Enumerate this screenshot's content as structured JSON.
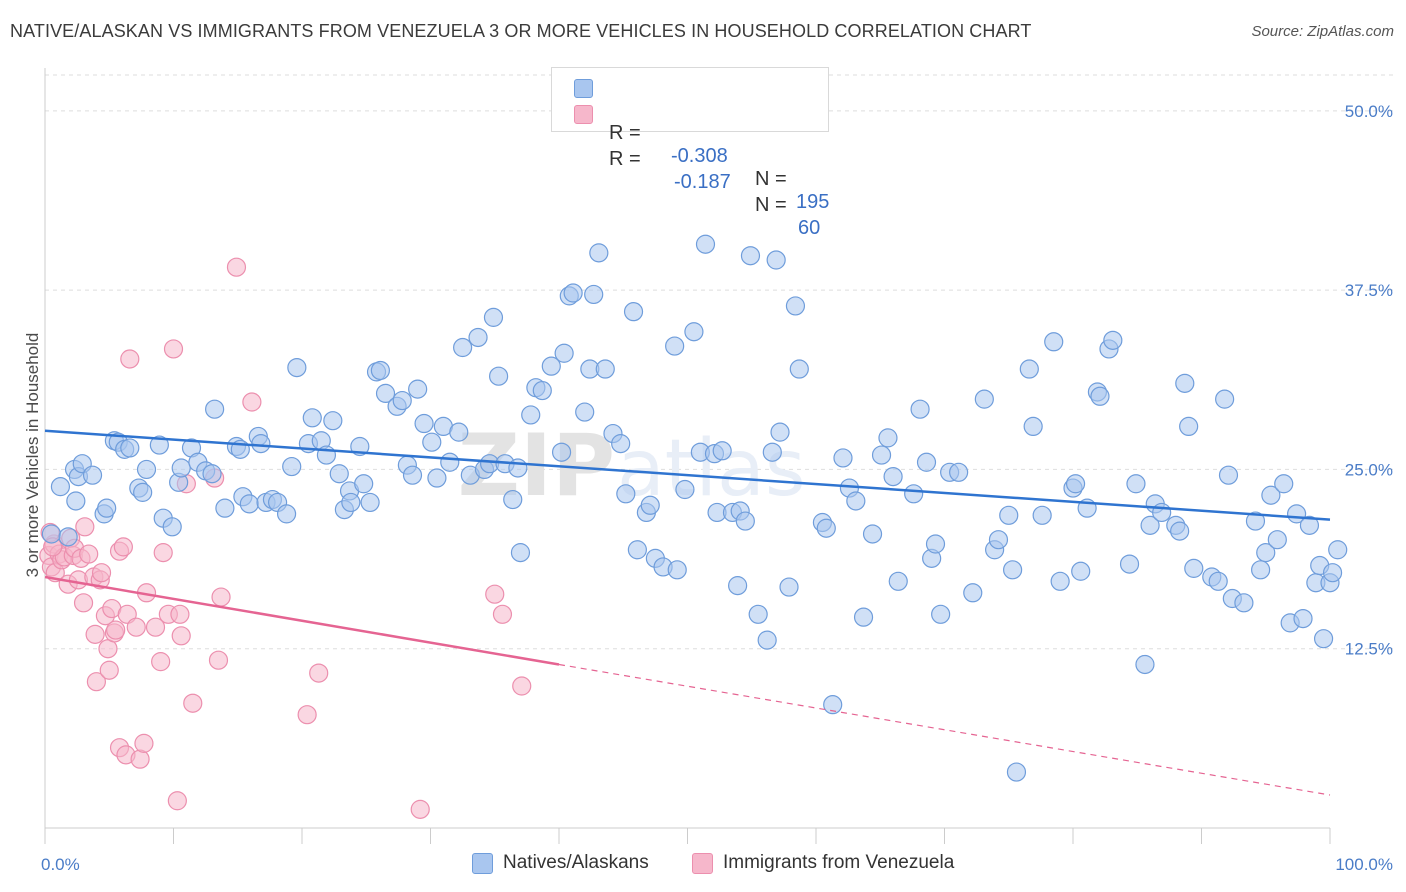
{
  "title": "NATIVE/ALASKAN VS IMMIGRANTS FROM VENEZUELA 3 OR MORE VEHICLES IN HOUSEHOLD CORRELATION CHART",
  "source": "Source: ZipAtlas.com",
  "watermark": "ZIPatlas",
  "colors": {
    "blue_fill": "#a9c6ef",
    "blue_stroke": "#6f9ddb",
    "blue_line": "#2f74d0",
    "pink_fill": "#f6b7cb",
    "pink_stroke": "#ec8fae",
    "pink_line": "#e56492",
    "grid": "#dedede",
    "tick_text": "#4a7cc7"
  },
  "legend_top": [
    {
      "r_label": "R =",
      "r_value": "-0.308",
      "n_label": "N =",
      "n_value": "195"
    },
    {
      "r_label": "R =",
      "r_value": "-0.187",
      "n_label": "N =",
      "n_value": "60"
    }
  ],
  "legend_bottom": [
    "Natives/Alaskans",
    "Immigrants from Venezuela"
  ],
  "chart_data": {
    "type": "scatter",
    "ylabel": "3 or more Vehicles in Household",
    "xlim": [
      0,
      100
    ],
    "ylim": [
      0,
      52.5
    ],
    "x_tick_labels": [
      "0.0%",
      "100.0%"
    ],
    "y_ticks": [
      12.5,
      25.0,
      37.5,
      50.0
    ],
    "y_tick_labels": [
      "12.5%",
      "25.0%",
      "37.5%",
      "50.0%"
    ],
    "grid": "horizontal dashed",
    "legend_placement": "top-center and bottom",
    "series": [
      {
        "name": "Natives/Alaskans",
        "trend": {
          "x": [
            0,
            100
          ],
          "y": [
            27.7,
            21.5
          ]
        },
        "points": [
          [
            0.5,
            20.5
          ],
          [
            1.2,
            23.8
          ],
          [
            1.8,
            20.3
          ],
          [
            2.3,
            25.0
          ],
          [
            2.4,
            22.8
          ],
          [
            2.6,
            24.5
          ],
          [
            2.9,
            25.4
          ],
          [
            3.7,
            24.6
          ],
          [
            4.6,
            21.9
          ],
          [
            4.8,
            22.3
          ],
          [
            5.4,
            27.0
          ],
          [
            5.7,
            26.9
          ],
          [
            6.2,
            26.4
          ],
          [
            6.6,
            26.5
          ],
          [
            7.3,
            23.7
          ],
          [
            7.6,
            23.4
          ],
          [
            7.9,
            25.0
          ],
          [
            8.9,
            26.7
          ],
          [
            9.2,
            21.6
          ],
          [
            9.9,
            21.0
          ],
          [
            10.4,
            24.1
          ],
          [
            10.6,
            25.1
          ],
          [
            11.4,
            26.5
          ],
          [
            11.9,
            25.5
          ],
          [
            12.5,
            24.9
          ],
          [
            13.0,
            24.7
          ],
          [
            13.2,
            29.2
          ],
          [
            14.0,
            22.3
          ],
          [
            14.9,
            26.6
          ],
          [
            15.2,
            26.4
          ],
          [
            15.4,
            23.1
          ],
          [
            15.9,
            22.6
          ],
          [
            16.6,
            27.3
          ],
          [
            16.8,
            26.8
          ],
          [
            17.2,
            22.7
          ],
          [
            17.7,
            22.9
          ],
          [
            18.1,
            22.7
          ],
          [
            18.8,
            21.9
          ],
          [
            19.2,
            25.2
          ],
          [
            19.6,
            32.1
          ],
          [
            20.5,
            26.8
          ],
          [
            20.8,
            28.6
          ],
          [
            21.5,
            27.0
          ],
          [
            21.9,
            26.0
          ],
          [
            22.4,
            28.4
          ],
          [
            22.9,
            24.7
          ],
          [
            23.3,
            22.2
          ],
          [
            23.7,
            23.5
          ],
          [
            23.8,
            22.7
          ],
          [
            24.5,
            26.6
          ],
          [
            24.8,
            24.0
          ],
          [
            25.3,
            22.7
          ],
          [
            25.8,
            31.8
          ],
          [
            26.1,
            31.9
          ],
          [
            26.5,
            30.3
          ],
          [
            27.4,
            29.4
          ],
          [
            27.8,
            29.8
          ],
          [
            28.2,
            25.3
          ],
          [
            28.6,
            24.6
          ],
          [
            29.0,
            30.6
          ],
          [
            29.5,
            28.2
          ],
          [
            30.1,
            26.9
          ],
          [
            30.5,
            24.4
          ],
          [
            31.0,
            28.0
          ],
          [
            31.5,
            25.5
          ],
          [
            32.2,
            27.6
          ],
          [
            32.5,
            33.5
          ],
          [
            33.1,
            24.6
          ],
          [
            33.7,
            34.2
          ],
          [
            34.2,
            25.0
          ],
          [
            34.6,
            25.4
          ],
          [
            34.9,
            35.6
          ],
          [
            35.3,
            31.5
          ],
          [
            35.8,
            25.4
          ],
          [
            36.4,
            22.9
          ],
          [
            36.8,
            25.1
          ],
          [
            37.0,
            19.2
          ],
          [
            37.8,
            28.8
          ],
          [
            38.2,
            30.7
          ],
          [
            38.7,
            30.5
          ],
          [
            39.4,
            32.2
          ],
          [
            40.2,
            26.2
          ],
          [
            40.4,
            33.1
          ],
          [
            40.8,
            37.1
          ],
          [
            41.1,
            37.3
          ],
          [
            42.0,
            29.0
          ],
          [
            42.4,
            32.0
          ],
          [
            42.7,
            37.2
          ],
          [
            43.1,
            40.1
          ],
          [
            43.6,
            32.0
          ],
          [
            44.2,
            27.5
          ],
          [
            44.8,
            26.8
          ],
          [
            45.2,
            23.3
          ],
          [
            45.8,
            36.0
          ],
          [
            46.1,
            19.4
          ],
          [
            46.8,
            22.0
          ],
          [
            47.1,
            22.5
          ],
          [
            47.5,
            18.8
          ],
          [
            48.1,
            18.2
          ],
          [
            49.0,
            33.6
          ],
          [
            49.2,
            18.0
          ],
          [
            49.8,
            23.6
          ],
          [
            50.5,
            34.6
          ],
          [
            51.0,
            26.2
          ],
          [
            51.4,
            40.7
          ],
          [
            52.1,
            26.1
          ],
          [
            52.3,
            22.0
          ],
          [
            52.7,
            26.3
          ],
          [
            53.5,
            22.0
          ],
          [
            53.9,
            16.9
          ],
          [
            54.1,
            22.1
          ],
          [
            54.5,
            21.4
          ],
          [
            54.9,
            39.9
          ],
          [
            55.5,
            14.9
          ],
          [
            56.2,
            13.1
          ],
          [
            56.6,
            26.2
          ],
          [
            56.9,
            39.6
          ],
          [
            57.2,
            27.6
          ],
          [
            57.9,
            16.8
          ],
          [
            58.4,
            36.4
          ],
          [
            58.7,
            32.0
          ],
          [
            60.5,
            21.3
          ],
          [
            60.8,
            20.9
          ],
          [
            61.3,
            8.6
          ],
          [
            62.1,
            25.8
          ],
          [
            62.6,
            23.7
          ],
          [
            63.1,
            22.8
          ],
          [
            63.7,
            14.7
          ],
          [
            64.4,
            20.5
          ],
          [
            65.1,
            26.0
          ],
          [
            65.6,
            27.2
          ],
          [
            66.0,
            24.5
          ],
          [
            66.4,
            17.2
          ],
          [
            67.6,
            23.3
          ],
          [
            68.1,
            29.2
          ],
          [
            68.6,
            25.5
          ],
          [
            69.0,
            18.8
          ],
          [
            69.3,
            19.8
          ],
          [
            69.7,
            14.9
          ],
          [
            70.4,
            24.8
          ],
          [
            71.1,
            24.8
          ],
          [
            72.2,
            16.4
          ],
          [
            73.1,
            29.9
          ],
          [
            73.9,
            19.4
          ],
          [
            74.2,
            20.1
          ],
          [
            75.0,
            21.8
          ],
          [
            75.3,
            18.0
          ],
          [
            75.6,
            3.9
          ],
          [
            76.6,
            32.0
          ],
          [
            76.9,
            28.0
          ],
          [
            77.6,
            21.8
          ],
          [
            78.5,
            33.9
          ],
          [
            79.0,
            17.2
          ],
          [
            80.0,
            23.7
          ],
          [
            80.2,
            24.0
          ],
          [
            80.6,
            17.9
          ],
          [
            81.1,
            22.3
          ],
          [
            81.9,
            30.4
          ],
          [
            82.1,
            30.1
          ],
          [
            82.8,
            33.4
          ],
          [
            83.1,
            34.0
          ],
          [
            84.4,
            18.4
          ],
          [
            84.9,
            24.0
          ],
          [
            85.6,
            11.4
          ],
          [
            86.0,
            21.1
          ],
          [
            86.4,
            22.6
          ],
          [
            86.9,
            22.0
          ],
          [
            88.0,
            21.1
          ],
          [
            88.3,
            20.7
          ],
          [
            88.7,
            31.0
          ],
          [
            89.0,
            28.0
          ],
          [
            89.4,
            18.1
          ],
          [
            90.8,
            17.5
          ],
          [
            91.3,
            17.2
          ],
          [
            91.8,
            29.9
          ],
          [
            92.1,
            24.6
          ],
          [
            92.4,
            16.0
          ],
          [
            93.3,
            15.7
          ],
          [
            94.2,
            21.4
          ],
          [
            94.6,
            18.0
          ],
          [
            95.0,
            19.2
          ],
          [
            95.4,
            23.2
          ],
          [
            95.9,
            20.1
          ],
          [
            96.4,
            24.0
          ],
          [
            96.9,
            14.3
          ],
          [
            97.4,
            21.9
          ],
          [
            97.9,
            14.6
          ],
          [
            98.4,
            21.1
          ],
          [
            98.9,
            17.1
          ],
          [
            99.2,
            18.3
          ],
          [
            99.5,
            13.2
          ],
          [
            100.0,
            17.1
          ],
          [
            100.2,
            17.8
          ],
          [
            100.6,
            19.4
          ]
        ]
      },
      {
        "name": "Immigrants from Venezuela",
        "trend": {
          "x": [
            0,
            40
          ],
          "y": [
            17.5,
            11.4
          ]
        },
        "trend_extended": {
          "x": [
            40,
            100
          ],
          "y": [
            11.4,
            2.3
          ]
        },
        "points": [
          [
            0.3,
            19.0
          ],
          [
            0.5,
            18.2
          ],
          [
            0.7,
            19.8
          ],
          [
            0.8,
            17.8
          ],
          [
            1.1,
            19.1
          ],
          [
            1.3,
            18.7
          ],
          [
            1.5,
            18.9
          ],
          [
            1.8,
            17.0
          ],
          [
            2.0,
            20.2
          ],
          [
            2.2,
            19.0
          ],
          [
            2.3,
            19.5
          ],
          [
            2.6,
            17.3
          ],
          [
            2.8,
            18.8
          ],
          [
            3.0,
            15.7
          ],
          [
            3.1,
            21.0
          ],
          [
            3.4,
            19.1
          ],
          [
            3.8,
            17.5
          ],
          [
            3.9,
            13.5
          ],
          [
            4.0,
            10.2
          ],
          [
            4.3,
            17.3
          ],
          [
            4.4,
            17.8
          ],
          [
            4.7,
            14.8
          ],
          [
            4.9,
            12.5
          ],
          [
            5.0,
            11.0
          ],
          [
            5.2,
            15.3
          ],
          [
            5.4,
            13.6
          ],
          [
            5.5,
            13.8
          ],
          [
            5.8,
            19.3
          ],
          [
            5.8,
            5.6
          ],
          [
            6.1,
            19.6
          ],
          [
            6.3,
            5.1
          ],
          [
            6.4,
            14.9
          ],
          [
            6.6,
            32.7
          ],
          [
            7.1,
            14.0
          ],
          [
            7.4,
            4.8
          ],
          [
            7.7,
            5.9
          ],
          [
            7.9,
            16.4
          ],
          [
            8.6,
            14.0
          ],
          [
            9.0,
            11.6
          ],
          [
            9.2,
            19.2
          ],
          [
            9.6,
            14.9
          ],
          [
            10.0,
            33.4
          ],
          [
            10.3,
            1.9
          ],
          [
            10.5,
            14.9
          ],
          [
            10.6,
            13.4
          ],
          [
            11.0,
            24.0
          ],
          [
            11.5,
            8.7
          ],
          [
            13.2,
            24.4
          ],
          [
            13.5,
            11.7
          ],
          [
            13.7,
            16.1
          ],
          [
            14.9,
            39.1
          ],
          [
            16.1,
            29.7
          ],
          [
            20.4,
            7.9
          ],
          [
            21.3,
            10.8
          ],
          [
            29.2,
            1.3
          ],
          [
            35.0,
            16.3
          ],
          [
            35.6,
            14.9
          ],
          [
            37.1,
            9.9
          ],
          [
            0.4,
            20.6
          ],
          [
            0.6,
            19.6
          ]
        ]
      }
    ]
  }
}
